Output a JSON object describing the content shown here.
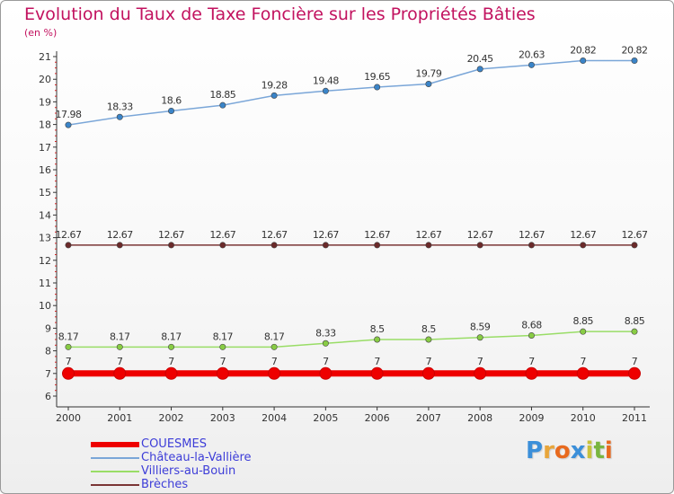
{
  "title": "Evolution du Taux de Taxe Foncière sur les Propriétés Bâties",
  "subtitle": "(en %)",
  "chart_data": {
    "type": "line",
    "title": "Evolution du Taux de Taxe Foncière sur les Propriétés Bâties",
    "ylabel": "(en %)",
    "xlabel": "",
    "x": [
      "2000",
      "2001",
      "2002",
      "2003",
      "2004",
      "2005",
      "2006",
      "2007",
      "2008",
      "2009",
      "2010",
      "2011"
    ],
    "ylim": [
      6,
      21
    ],
    "yticks": [
      6,
      7,
      8,
      9,
      10,
      11,
      12,
      13,
      14,
      15,
      16,
      17,
      18,
      19,
      20,
      21
    ],
    "grid": false,
    "legend_position": "bottom-left",
    "series": [
      {
        "name": "COUESMES",
        "color": "#ee0000",
        "values": [
          7,
          7,
          7,
          7,
          7,
          7,
          7,
          7,
          7,
          7,
          7,
          7
        ],
        "labels": [
          "7",
          "7",
          "7",
          "7",
          "7",
          "7",
          "7",
          "7",
          "7",
          "7",
          "7",
          "7"
        ]
      },
      {
        "name": "Château-la-Vallière",
        "color": "#7aa6d8",
        "marker": "#3a84c8",
        "values": [
          17.98,
          18.33,
          18.6,
          18.85,
          19.28,
          19.48,
          19.65,
          19.79,
          20.45,
          20.63,
          20.82,
          20.82
        ],
        "labels": [
          "17.98",
          "18.33",
          "18.6",
          "18.85",
          "19.28",
          "19.48",
          "19.65",
          "19.79",
          "20.45",
          "20.63",
          "20.82",
          "20.82"
        ]
      },
      {
        "name": "Villiers-au-Bouin",
        "color": "#99dd66",
        "marker": "#88cc44",
        "values": [
          8.17,
          8.17,
          8.17,
          8.17,
          8.17,
          8.33,
          8.5,
          8.5,
          8.59,
          8.68,
          8.85,
          8.85
        ],
        "labels": [
          "8.17",
          "8.17",
          "8.17",
          "8.17",
          "8.17",
          "8.33",
          "8.5",
          "8.5",
          "8.59",
          "8.68",
          "8.85",
          "8.85"
        ]
      },
      {
        "name": "Brèches",
        "color": "#7a3535",
        "marker": "#6b2a2a",
        "values": [
          12.67,
          12.67,
          12.67,
          12.67,
          12.67,
          12.67,
          12.67,
          12.67,
          12.67,
          12.67,
          12.67,
          12.67
        ],
        "labels": [
          "12.67",
          "12.67",
          "12.67",
          "12.67",
          "12.67",
          "12.67",
          "12.67",
          "12.67",
          "12.67",
          "12.67",
          "12.67",
          "12.67"
        ]
      }
    ]
  },
  "logo": {
    "letters": [
      "P",
      "r",
      "o",
      "x",
      "i",
      "t",
      "i"
    ],
    "colors": [
      "#3b8fd9",
      "#e8a53a",
      "#e86a1e",
      "#3b8fd9",
      "#c9c23a",
      "#79b53f",
      "#e86a1e"
    ]
  }
}
